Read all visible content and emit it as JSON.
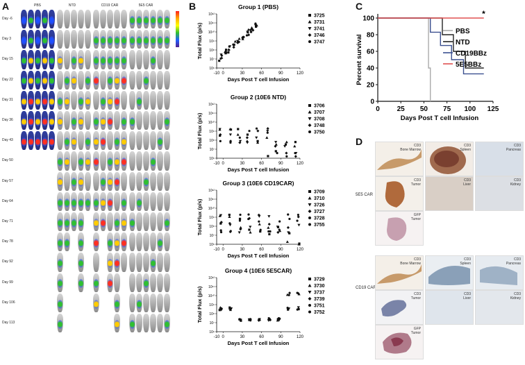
{
  "panels": {
    "A": {
      "label": "A",
      "groups": [
        "PBS",
        "NTD",
        "CD19 CAR",
        "5E5 CAR"
      ],
      "days": [
        "Day -6",
        "Day 3",
        "Day 15",
        "Day 22",
        "Day 31",
        "Day 36",
        "Day 43",
        "Day 50",
        "Day 57",
        "Day 64",
        "Day 71",
        "Day 78",
        "Day 92",
        "Day 99",
        "Day 106",
        "Day 113"
      ]
    },
    "B": {
      "label": "B",
      "y_label": "Total Flux (p/s)",
      "x_label": "Days Post T cell Infusion",
      "groups": [
        {
          "title": "Group 1 (PBS)",
          "mice": [
            "3725",
            "3731",
            "3741",
            "3746",
            "3747"
          ],
          "xticks": [
            "-10",
            "0",
            "30",
            "60",
            "90",
            "120"
          ]
        },
        {
          "title": "Group 2 (10E6 NTD)",
          "mice": [
            "3706",
            "3707",
            "3708",
            "3748",
            "3750"
          ],
          "xticks": [
            "-10",
            "0",
            "30",
            "60",
            "90",
            "120"
          ]
        },
        {
          "title": "Group 3 (10E6 CD19CAR)",
          "mice": [
            "3709",
            "3710",
            "3726",
            "3727",
            "3728",
            "3755"
          ],
          "xticks": [
            "-10",
            "0",
            "30",
            "60",
            "90",
            "120"
          ]
        },
        {
          "title": "Group 4 (10E6 5E5CAR)",
          "mice": [
            "3729",
            "3730",
            "3737",
            "3739",
            "3751",
            "3752"
          ],
          "xticks": [
            "-10",
            "0",
            "30",
            "60",
            "90",
            "120"
          ]
        }
      ],
      "yticks": [
        "10¹²",
        "10¹¹",
        "10¹⁰",
        "10⁹",
        "10⁸",
        "10⁷",
        "10⁶"
      ]
    },
    "C": {
      "label": "C",
      "asterisk": "*",
      "chart_data": {
        "type": "line",
        "title": "",
        "xlabel": "Days Post T cell Infusion",
        "ylabel": "Percent survival",
        "xlim": [
          0,
          125
        ],
        "ylim": [
          0,
          100
        ],
        "xticks": [
          0,
          25,
          50,
          75,
          100,
          125
        ],
        "yticks": [
          0,
          20,
          40,
          60,
          80,
          100
        ],
        "series": [
          {
            "name": "PBS",
            "color": "#aaaaaa",
            "x": [
              0,
              55,
              55,
              57,
              57
            ],
            "y": [
              100,
              100,
              40,
              40,
              0
            ]
          },
          {
            "name": "NTD",
            "color": "#222222",
            "x": [
              0,
              57,
              57,
              70,
              70,
              82,
              82,
              95,
              95,
              115
            ],
            "y": [
              100,
              100,
              100,
              100,
              80,
              80,
              60,
              60,
              40,
              40
            ]
          },
          {
            "name": "CD19BBz",
            "color": "#3a4f8f",
            "x": [
              0,
              57,
              57,
              68,
              68,
              80,
              80,
              93,
              93,
              115
            ],
            "y": [
              100,
              100,
              83,
              83,
              67,
              67,
              50,
              50,
              33,
              33
            ]
          },
          {
            "name": "5E5BBz",
            "color": "#e05050",
            "x": [
              0,
              115
            ],
            "y": [
              100,
              100
            ]
          }
        ]
      }
    },
    "D": {
      "label": "D",
      "rows": [
        {
          "name": "5E5 CAR"
        },
        {
          "name": "CD19 CAR"
        }
      ],
      "tiles": {
        "bone_marrow": "CD3\nBone Marrow",
        "spleen": "CD3\nSpleen",
        "pancreas": "CD3\nPancreas",
        "tumor": "CD3\nTumor",
        "liver": "CD3\nLiver",
        "kidney": "CD3\nKidney",
        "gfp_tumor": "GFP\nTumor"
      }
    }
  }
}
